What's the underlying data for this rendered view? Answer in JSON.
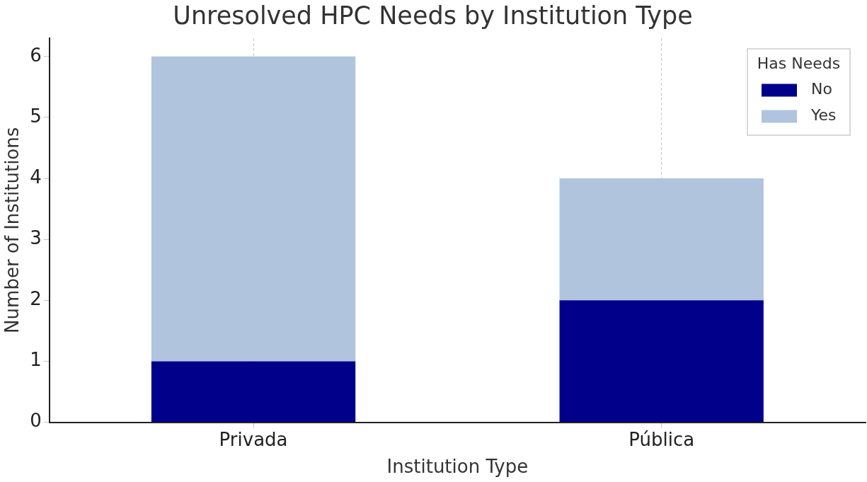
{
  "chart_data": {
    "type": "bar",
    "title": "Unresolved HPC Needs by Institution Type",
    "xlabel": "Institution Type",
    "ylabel": "Number of Institutions",
    "legend_title": "Has Needs",
    "categories": [
      "Privada",
      "Pública"
    ],
    "series": [
      {
        "name": "No",
        "color": "#00008b",
        "values": [
          1,
          2
        ]
      },
      {
        "name": "Yes",
        "color": "#b0c4de",
        "values": [
          5,
          2
        ]
      }
    ],
    "stacked": true,
    "ylim": [
      0,
      6.3
    ],
    "yticks": [
      0,
      1,
      2,
      3,
      4,
      5,
      6
    ],
    "grid": "x",
    "legend": "top right"
  }
}
